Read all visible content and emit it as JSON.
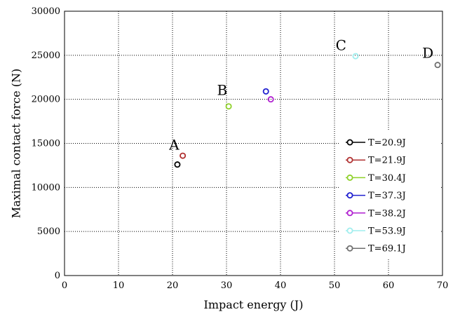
{
  "chart_data": {
    "type": "scatter",
    "xlabel": "Impact energy (J)",
    "ylabel": "Maximal contact force (N)",
    "xlim": [
      0,
      70
    ],
    "ylim": [
      0,
      30000
    ],
    "xticks": [
      0,
      10,
      20,
      30,
      40,
      50,
      60,
      70
    ],
    "yticks": [
      0,
      5000,
      10000,
      15000,
      20000,
      25000,
      30000
    ],
    "grid": true,
    "legend_position": "right",
    "series": [
      {
        "name": "T=20.9J",
        "color": "#000000",
        "x": [
          20.9
        ],
        "y": [
          12600
        ]
      },
      {
        "name": "T=21.9J",
        "color": "#b03030",
        "x": [
          21.9
        ],
        "y": [
          13600
        ]
      },
      {
        "name": "T=30.4J",
        "color": "#8fd12a",
        "x": [
          30.4
        ],
        "y": [
          19200
        ]
      },
      {
        "name": "T=37.3J",
        "color": "#2020d0",
        "x": [
          37.3
        ],
        "y": [
          20900
        ]
      },
      {
        "name": "T=38.2J",
        "color": "#b020d0",
        "x": [
          38.2
        ],
        "y": [
          20000
        ]
      },
      {
        "name": "T=53.9J",
        "color": "#a0eeee",
        "x": [
          53.9
        ],
        "y": [
          24900
        ]
      },
      {
        "name": "T=69.1J",
        "color": "#707070",
        "x": [
          69.1
        ],
        "y": [
          23900
        ]
      }
    ],
    "annotations": [
      {
        "text": "A",
        "x": 20.3,
        "y": 14300
      },
      {
        "text": "B",
        "x": 29.2,
        "y": 20500
      },
      {
        "text": "C",
        "x": 51.2,
        "y": 25600
      },
      {
        "text": "D",
        "x": 67.3,
        "y": 24700
      }
    ]
  }
}
